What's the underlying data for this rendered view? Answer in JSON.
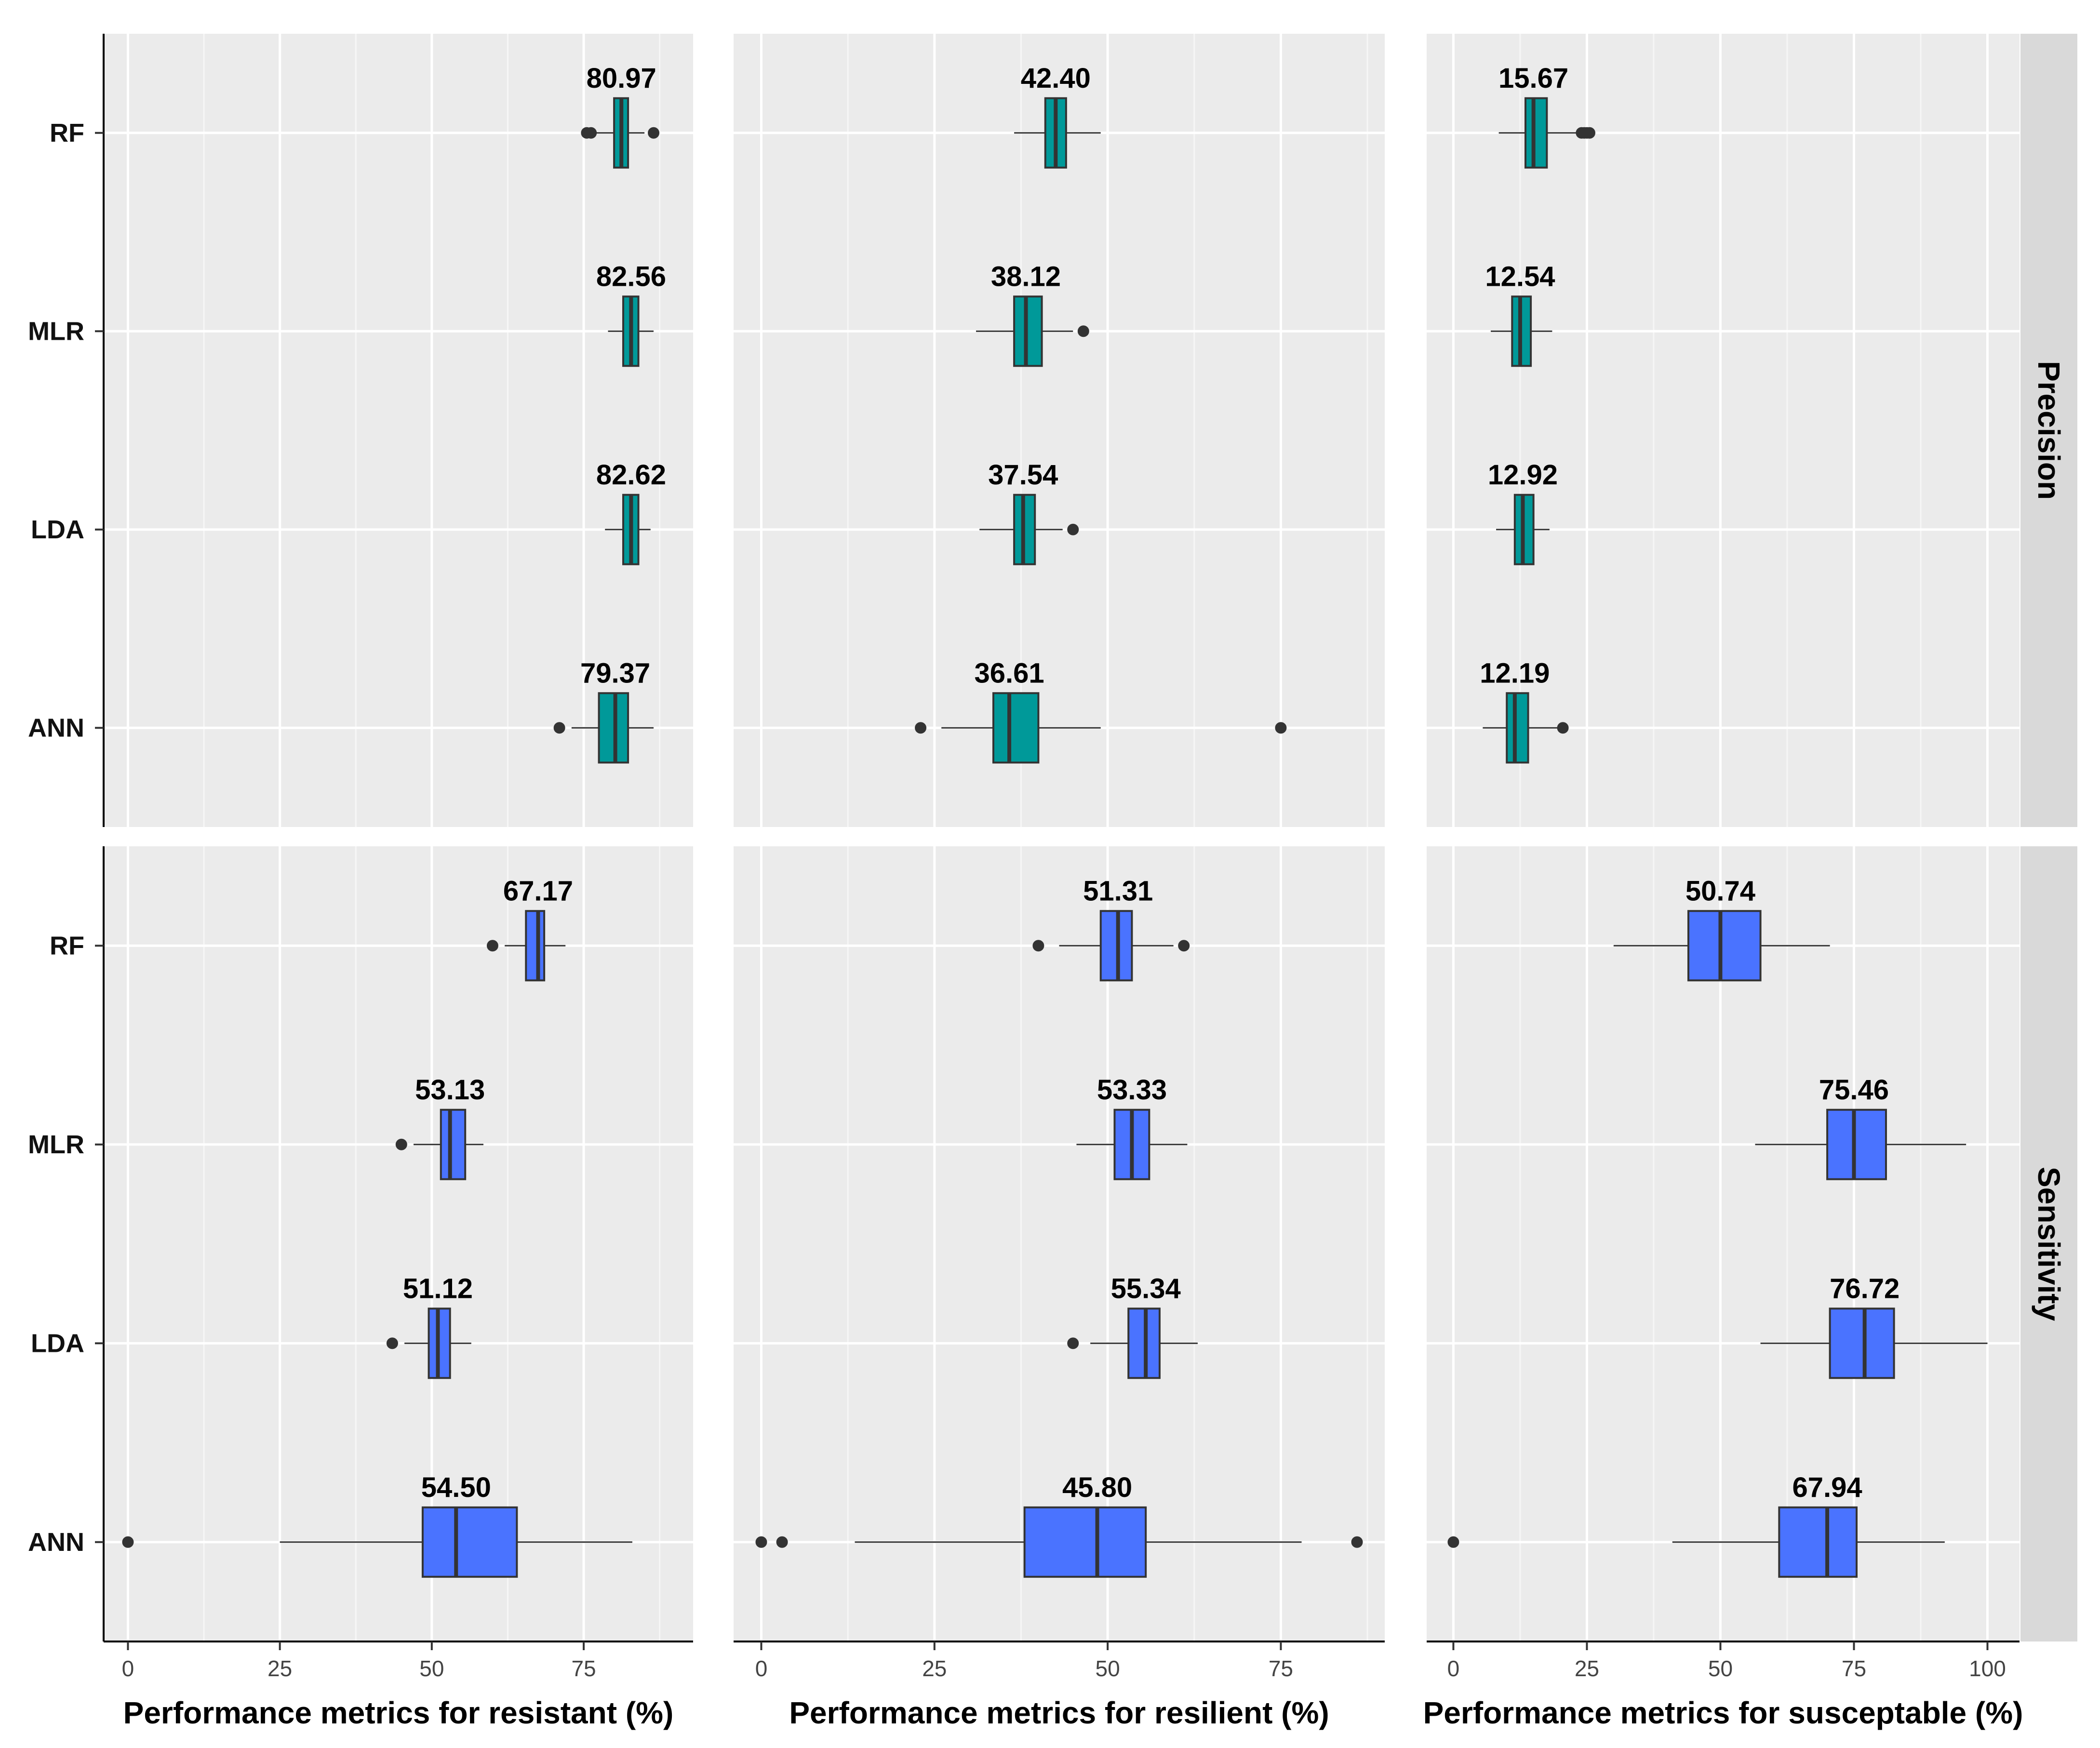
{
  "chart_data": {
    "type": "boxplot",
    "models": [
      "RF",
      "MLR",
      "LDA",
      "ANN"
    ],
    "colors": {
      "Precision": "#009999",
      "Sensitivity": "#4a73ff",
      "panel_bg": "#ebebeb",
      "strip_bg": "#d9d9d9"
    },
    "columns": [
      {
        "xlabel": "Performance metrics for resistant (%)",
        "xlim": [
          -4,
          93
        ],
        "ticks": [
          0,
          25,
          50,
          75
        ],
        "tick_labels": [
          "0",
          "25",
          "50",
          "75"
        ]
      },
      {
        "xlabel": "Performance metrics for resilient (%)",
        "xlim": [
          -4,
          90
        ],
        "ticks": [
          0,
          25,
          50,
          75
        ],
        "tick_labels": [
          "0",
          "25",
          "50",
          "75"
        ]
      },
      {
        "xlabel": "Performance metrics for susceptable (%)",
        "xlim": [
          -5,
          106
        ],
        "ticks": [
          0,
          25,
          50,
          75,
          100
        ],
        "tick_labels": [
          "0",
          "25",
          "50",
          "75",
          "100"
        ]
      }
    ],
    "rows": [
      {
        "metric": "Precision",
        "panels": [
          [
            {
              "model": "RF",
              "label": "80.97",
              "whisker_low": 76,
              "q1": 80,
              "median": 81.2,
              "q3": 82.3,
              "whisker_high": 85,
              "outliers": [
                75.5,
                76.2,
                86.5
              ]
            },
            {
              "model": "MLR",
              "label": "82.56",
              "whisker_low": 79,
              "q1": 81.5,
              "median": 82.8,
              "q3": 84,
              "whisker_high": 86.5,
              "outliers": []
            },
            {
              "model": "LDA",
              "label": "82.62",
              "whisker_low": 78.5,
              "q1": 81.5,
              "median": 82.8,
              "q3": 84,
              "whisker_high": 86,
              "outliers": []
            },
            {
              "model": "ANN",
              "label": "79.37",
              "whisker_low": 73,
              "q1": 77.5,
              "median": 80.2,
              "q3": 82.3,
              "whisker_high": 86.5,
              "outliers": [
                71
              ]
            }
          ],
          [
            {
              "model": "RF",
              "label": "42.40",
              "whisker_low": 36.5,
              "q1": 41,
              "median": 42.5,
              "q3": 44,
              "whisker_high": 49,
              "outliers": []
            },
            {
              "model": "MLR",
              "label": "38.12",
              "whisker_low": 31,
              "q1": 36.5,
              "median": 38.2,
              "q3": 40.5,
              "whisker_high": 45,
              "outliers": [
                46.5
              ]
            },
            {
              "model": "LDA",
              "label": "37.54",
              "whisker_low": 31.5,
              "q1": 36.5,
              "median": 37.8,
              "q3": 39.5,
              "whisker_high": 43.5,
              "outliers": [
                45
              ]
            },
            {
              "model": "ANN",
              "label": "36.61",
              "whisker_low": 26,
              "q1": 33.5,
              "median": 35.8,
              "q3": 40,
              "whisker_high": 49,
              "outliers": [
                23,
                75
              ]
            }
          ],
          [
            {
              "model": "RF",
              "label": "15.67",
              "whisker_low": 8.5,
              "q1": 13.5,
              "median": 15,
              "q3": 17.5,
              "whisker_high": 23,
              "outliers": [
                24,
                24.5,
                25,
                25.5
              ]
            },
            {
              "model": "MLR",
              "label": "12.54",
              "whisker_low": 7,
              "q1": 11,
              "median": 12.5,
              "q3": 14.5,
              "whisker_high": 18.5,
              "outliers": []
            },
            {
              "model": "LDA",
              "label": "12.92",
              "whisker_low": 8,
              "q1": 11.5,
              "median": 13,
              "q3": 15,
              "whisker_high": 18,
              "outliers": []
            },
            {
              "model": "ANN",
              "label": "12.19",
              "whisker_low": 5.5,
              "q1": 10,
              "median": 11.5,
              "q3": 14,
              "whisker_high": 19.5,
              "outliers": [
                20.5
              ]
            }
          ]
        ]
      },
      {
        "metric": "Sensitivity",
        "panels": [
          [
            {
              "model": "RF",
              "label": "67.17",
              "whisker_low": 62,
              "q1": 65.5,
              "median": 67.5,
              "q3": 68.5,
              "whisker_high": 72,
              "outliers": [
                60
              ]
            },
            {
              "model": "MLR",
              "label": "53.13",
              "whisker_low": 47,
              "q1": 51.5,
              "median": 53,
              "q3": 55.5,
              "whisker_high": 58.5,
              "outliers": [
                45
              ]
            },
            {
              "model": "LDA",
              "label": "51.12",
              "whisker_low": 45.5,
              "q1": 49.5,
              "median": 51,
              "q3": 53,
              "whisker_high": 56.5,
              "outliers": [
                43.5
              ]
            },
            {
              "model": "ANN",
              "label": "54.50",
              "whisker_low": 25,
              "q1": 48.5,
              "median": 54,
              "q3": 64,
              "whisker_high": 83,
              "outliers": [
                0
              ]
            }
          ],
          [
            {
              "model": "RF",
              "label": "51.31",
              "whisker_low": 43,
              "q1": 49,
              "median": 51.5,
              "q3": 53.5,
              "whisker_high": 59.5,
              "outliers": [
                40,
                61
              ]
            },
            {
              "model": "MLR",
              "label": "53.33",
              "whisker_low": 45.5,
              "q1": 51,
              "median": 53.5,
              "q3": 56,
              "whisker_high": 61.5,
              "outliers": []
            },
            {
              "model": "LDA",
              "label": "55.34",
              "whisker_low": 47.5,
              "q1": 53,
              "median": 55.5,
              "q3": 57.5,
              "whisker_high": 63,
              "outliers": [
                45
              ]
            },
            {
              "model": "ANN",
              "label": "45.80",
              "whisker_low": 13.5,
              "q1": 38,
              "median": 48.5,
              "q3": 55.5,
              "whisker_high": 78,
              "outliers": [
                0,
                3,
                86
              ]
            }
          ],
          [
            {
              "model": "RF",
              "label": "50.74",
              "whisker_low": 30,
              "q1": 44,
              "median": 50,
              "q3": 57.5,
              "whisker_high": 70.5,
              "outliers": []
            },
            {
              "model": "MLR",
              "label": "75.46",
              "whisker_low": 56.5,
              "q1": 70,
              "median": 75,
              "q3": 81,
              "whisker_high": 96,
              "outliers": []
            },
            {
              "model": "LDA",
              "label": "76.72",
              "whisker_low": 57.5,
              "q1": 70.5,
              "median": 77,
              "q3": 82.5,
              "whisker_high": 100,
              "outliers": []
            },
            {
              "model": "ANN",
              "label": "67.94",
              "whisker_low": 41,
              "q1": 61,
              "median": 70,
              "q3": 75.5,
              "whisker_high": 92,
              "outliers": [
                0
              ]
            }
          ]
        ]
      }
    ]
  }
}
